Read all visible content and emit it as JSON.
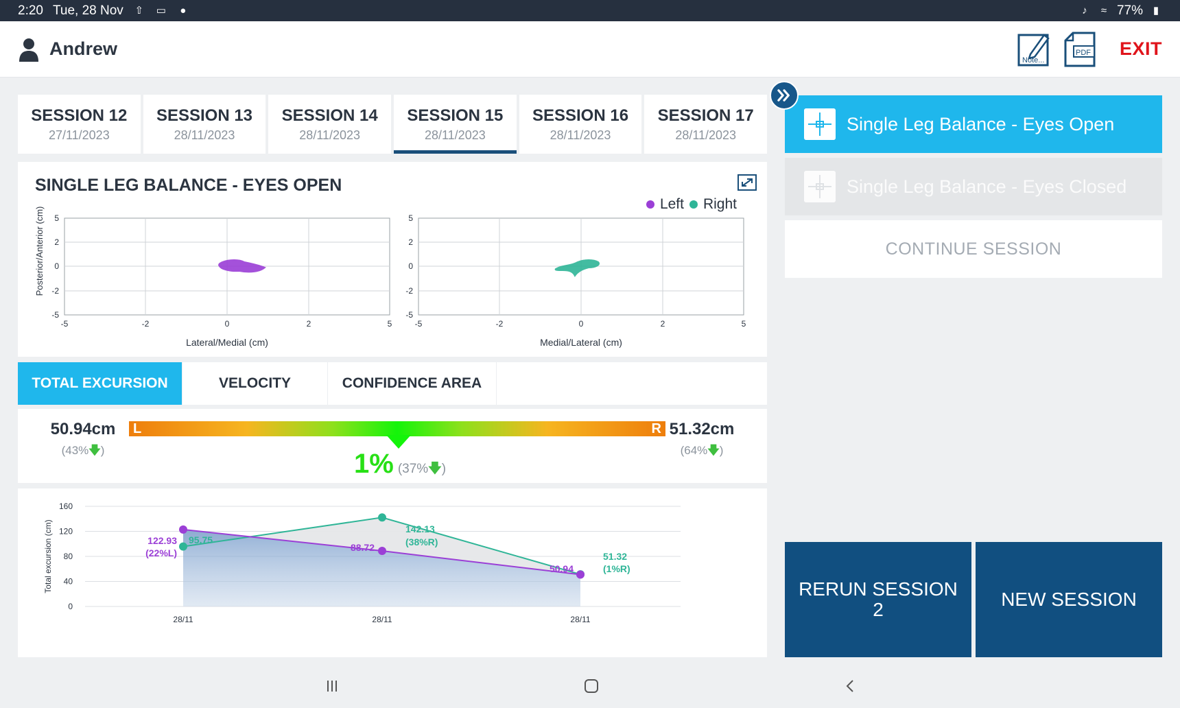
{
  "status_bar": {
    "time": "2:20",
    "date": "Tue, 28 Nov",
    "battery": "77%",
    "icons": [
      "upload-icon",
      "cast-icon",
      "person-icon",
      "mute-icon",
      "wifi-icon",
      "battery-icon"
    ]
  },
  "header": {
    "user_name": "Andrew",
    "notes_label": "Note...",
    "pdf_label": "PDF",
    "exit_label": "EXIT"
  },
  "sessions": [
    {
      "name": "SESSION 12",
      "date": "27/11/2023",
      "active": false
    },
    {
      "name": "SESSION 13",
      "date": "28/11/2023",
      "active": false
    },
    {
      "name": "SESSION 14",
      "date": "28/11/2023",
      "active": false
    },
    {
      "name": "SESSION 15",
      "date": "28/11/2023",
      "active": true
    },
    {
      "name": "SESSION 16",
      "date": "28/11/2023",
      "active": false
    },
    {
      "name": "SESSION 17",
      "date": "28/11/2023",
      "active": false
    }
  ],
  "balance": {
    "title": "SINGLE LEG BALANCE - EYES OPEN",
    "legend_left": "Left",
    "legend_right": "Right",
    "colors": {
      "left": "#9b3fd6",
      "right": "#2fb597"
    },
    "y_axis_label": "Posterior/Anterior (cm)",
    "left_plot_xlabel": "Lateral/Medial (cm)",
    "right_plot_xlabel": "Medial/Lateral (cm)",
    "x_ticks": [
      "-5",
      "-2",
      "0",
      "2",
      "5"
    ],
    "y_ticks": [
      "5",
      "2",
      "0",
      "-2",
      "-5"
    ]
  },
  "metric_tabs": {
    "total_excursion": "TOTAL EXCURSION",
    "velocity": "VELOCITY",
    "confidence_area": "CONFIDENCE AREA"
  },
  "lr_bar": {
    "left_value": "50.94cm",
    "left_pct": "(43%",
    "right_value": "51.32cm",
    "right_pct": "(64%",
    "left_letter": "L",
    "right_letter": "R",
    "diff_value": "1%",
    "diff_pct": "(37%",
    "close_paren": ")",
    "pointer_position": 0.51
  },
  "chart_data": {
    "type": "area",
    "ylabel": "Total excursion (cm)",
    "ylim": [
      0,
      160
    ],
    "y_ticks": [
      "160",
      "120",
      "80",
      "40",
      "0"
    ],
    "categories": [
      "28/11",
      "28/11",
      "28/11"
    ],
    "series": [
      {
        "values": [
          122.93,
          88.72,
          50.94
        ],
        "color": "#9b3fd6"
      },
      {
        "values": [
          95.75,
          142.13,
          51.32
        ],
        "color": "#2fb597"
      }
    ],
    "annotations": {
      "left": [
        "122.93",
        "88.72",
        "50.94"
      ],
      "right": [
        "95.75",
        "142.13",
        "51.32"
      ],
      "pct": [
        "(22%L)",
        "(38%R)",
        "(1%R)"
      ]
    }
  },
  "right_panel": {
    "exercise_open": "Single Leg Balance - Eyes Open",
    "exercise_closed": "Single Leg Balance - Eyes Closed",
    "continue_label": "CONTINUE SESSION",
    "rerun_label": "RERUN SESSION 2",
    "new_label": "NEW SESSION"
  }
}
